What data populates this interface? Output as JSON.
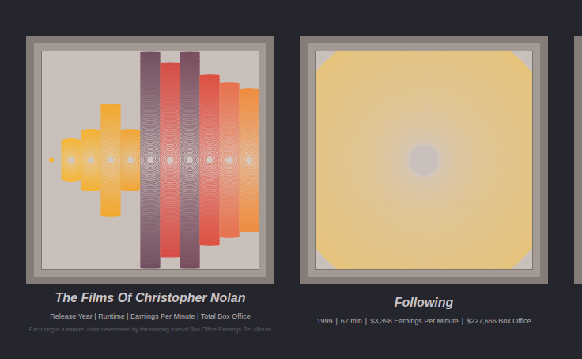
{
  "chart_data": [
    {
      "type": "rings",
      "title": "The Films Of Christopher Nolan",
      "subtitle": "Release Year | Runtime | Earnings Per Minute | Total Box Office",
      "note": "Each ring is a minute, color determined by the running sum of Box Office Earnings Per Minute",
      "values": [
        3,
        27,
        39,
        71,
        39,
        137,
        123,
        137,
        108,
        98,
        91
      ],
      "colors": [
        "#f5b42c",
        "#f6b431",
        "#f5b02e",
        "#f3a729",
        "#f2a431",
        "#6e4a5c",
        "#d64840",
        "#74485a",
        "#de4a3c",
        "#e86e48",
        "#ef8a3a"
      ],
      "ylim": [
        0,
        138
      ],
      "tick_labels": false
    },
    {
      "type": "rings",
      "title": "Following",
      "stats": [
        {
          "value": 1999,
          "label": "1999"
        },
        {
          "value": 67,
          "label": "67 min"
        },
        {
          "value": 3398,
          "label": "$3,398 Earnings Per Minute"
        },
        {
          "value": 227666,
          "label": "$227,666 Box Office"
        }
      ],
      "separator": "|",
      "color": "#e7c47c",
      "tick_labels": false
    }
  ]
}
